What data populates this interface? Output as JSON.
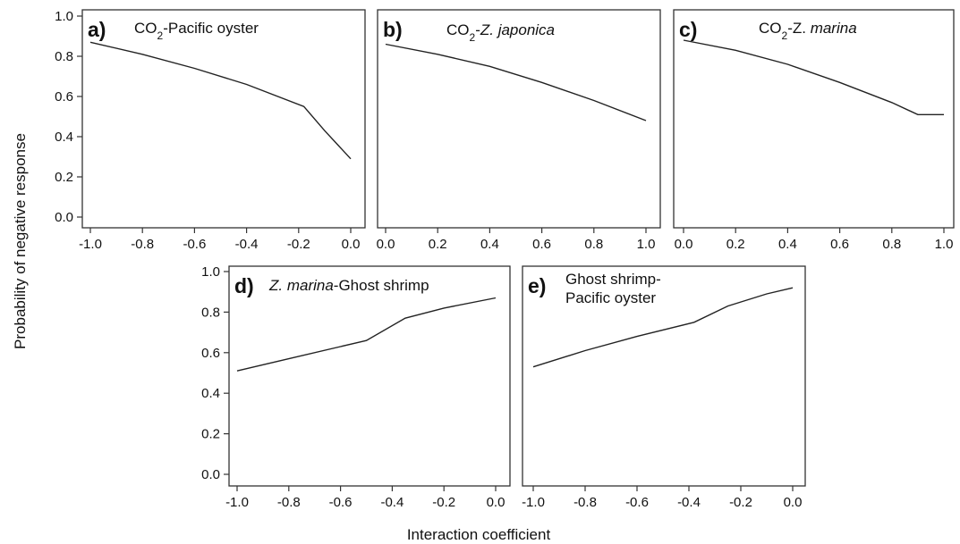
{
  "chart_data": [
    {
      "type": "line",
      "panel": "a)",
      "title": "CO2-Pacific oyster",
      "title_parts": [
        {
          "t": "CO"
        },
        {
          "t": "2",
          "sub": true
        },
        {
          "t": "-Pacific oyster"
        }
      ],
      "xlim": [
        -1.0,
        0.0
      ],
      "ylim": [
        0.0,
        1.0
      ],
      "xticks": [
        "-1.0",
        "-0.8",
        "-0.6",
        "-0.4",
        "-0.2",
        "0.0"
      ],
      "yticks": [
        "0.0",
        "0.2",
        "0.4",
        "0.6",
        "0.8",
        "1.0"
      ],
      "x": [
        -1.0,
        -0.8,
        -0.6,
        -0.4,
        -0.18,
        -0.1,
        -0.05,
        0.0
      ],
      "y": [
        0.87,
        0.81,
        0.74,
        0.66,
        0.55,
        0.43,
        0.36,
        0.29
      ]
    },
    {
      "type": "line",
      "panel": "b)",
      "title": "CO2-Z. japonica",
      "title_parts": [
        {
          "t": "CO"
        },
        {
          "t": "2",
          "sub": true
        },
        {
          "t": "-"
        },
        {
          "t": "Z. japonica",
          "italic": true
        }
      ],
      "xlim": [
        0.0,
        1.0
      ],
      "ylim": [
        0.0,
        1.0
      ],
      "xticks": [
        "0.0",
        "0.2",
        "0.4",
        "0.6",
        "0.8",
        "1.0"
      ],
      "yticks": [],
      "x": [
        0.0,
        0.2,
        0.4,
        0.6,
        0.8,
        1.0
      ],
      "y": [
        0.86,
        0.81,
        0.75,
        0.67,
        0.58,
        0.48
      ]
    },
    {
      "type": "line",
      "panel": "c)",
      "title": "CO2-Z. marina",
      "title_parts": [
        {
          "t": "CO"
        },
        {
          "t": "2",
          "sub": true
        },
        {
          "t": "-Z. "
        },
        {
          "t": "marina",
          "italic": true
        }
      ],
      "xlim": [
        0.0,
        1.0
      ],
      "ylim": [
        0.0,
        1.0
      ],
      "xticks": [
        "0.0",
        "0.2",
        "0.4",
        "0.6",
        "0.8",
        "1.0"
      ],
      "yticks": [],
      "x": [
        0.0,
        0.2,
        0.4,
        0.6,
        0.8,
        0.9,
        1.0
      ],
      "y": [
        0.88,
        0.83,
        0.76,
        0.67,
        0.57,
        0.51,
        0.51
      ]
    },
    {
      "type": "line",
      "panel": "d)",
      "title": "Z. marina-Ghost shrimp",
      "title_parts": [
        {
          "t": "Z. marina",
          "italic": true
        },
        {
          "t": "-Ghost shrimp"
        }
      ],
      "xlim": [
        -1.0,
        0.0
      ],
      "ylim": [
        0.0,
        1.0
      ],
      "xticks": [
        "-1.0",
        "-0.8",
        "-0.6",
        "-0.4",
        "-0.2",
        "0.0"
      ],
      "yticks": [
        "0.0",
        "0.2",
        "0.4",
        "0.6",
        "0.8",
        "1.0"
      ],
      "x": [
        -1.0,
        -0.8,
        -0.6,
        -0.5,
        -0.35,
        -0.2,
        0.0
      ],
      "y": [
        0.51,
        0.57,
        0.63,
        0.66,
        0.77,
        0.82,
        0.87
      ]
    },
    {
      "type": "line",
      "panel": "e)",
      "title": "Ghost shrimp-Pacific oyster",
      "title_lines": [
        "Ghost shrimp-",
        "Pacific oyster"
      ],
      "xlim": [
        -1.0,
        0.0
      ],
      "ylim": [
        0.0,
        1.0
      ],
      "xticks": [
        "-1.0",
        "-0.8",
        "-0.6",
        "-0.4",
        "-0.2",
        "0.0"
      ],
      "yticks": [],
      "x": [
        -1.0,
        -0.8,
        -0.6,
        -0.38,
        -0.25,
        -0.1,
        0.0
      ],
      "y": [
        0.53,
        0.61,
        0.68,
        0.75,
        0.83,
        0.89,
        0.92
      ]
    }
  ],
  "shared": {
    "ylabel": "Probability of negative response",
    "xlabel": "Interaction coefficient"
  }
}
